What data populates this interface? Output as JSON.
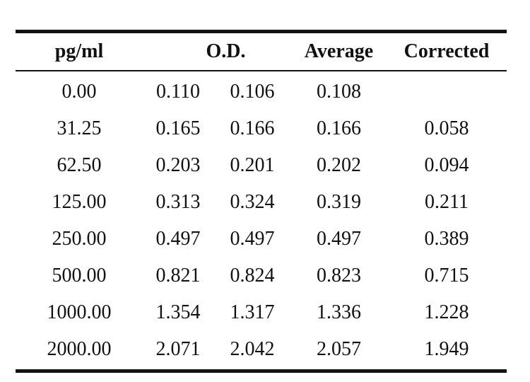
{
  "table": {
    "headers": {
      "concentration": "pg/ml",
      "od": "O.D.",
      "average": "Average",
      "corrected": "Corrected"
    },
    "rows": [
      {
        "concentration": "0.00",
        "od1": "0.110",
        "od2": "0.106",
        "average": "0.108",
        "corrected": ""
      },
      {
        "concentration": "31.25",
        "od1": "0.165",
        "od2": "0.166",
        "average": "0.166",
        "corrected": "0.058"
      },
      {
        "concentration": "62.50",
        "od1": "0.203",
        "od2": "0.201",
        "average": "0.202",
        "corrected": "0.094"
      },
      {
        "concentration": "125.00",
        "od1": "0.313",
        "od2": "0.324",
        "average": "0.319",
        "corrected": "0.211"
      },
      {
        "concentration": "250.00",
        "od1": "0.497",
        "od2": "0.497",
        "average": "0.497",
        "corrected": "0.389"
      },
      {
        "concentration": "500.00",
        "od1": "0.821",
        "od2": "0.824",
        "average": "0.823",
        "corrected": "0.715"
      },
      {
        "concentration": "1000.00",
        "od1": "1.354",
        "od2": "1.317",
        "average": "1.336",
        "corrected": "1.228"
      },
      {
        "concentration": "2000.00",
        "od1": "2.071",
        "od2": "2.042",
        "average": "2.057",
        "corrected": "1.949"
      }
    ]
  }
}
